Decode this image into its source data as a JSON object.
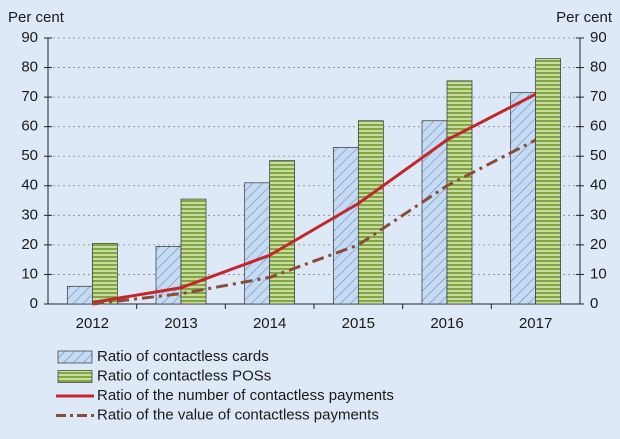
{
  "chart_data": {
    "type": "bar",
    "y_label": "Per cent",
    "y2_label": "Per cent",
    "categories": [
      "2012",
      "2013",
      "2014",
      "2015",
      "2016",
      "2017"
    ],
    "series": [
      {
        "name": "Ratio of contactless cards",
        "type": "bar",
        "hatch": "diagonal",
        "color": "#c6daf1",
        "values": [
          6,
          19.5,
          41,
          53,
          62,
          71.5
        ]
      },
      {
        "name": "Ratio of contactless POSs",
        "type": "bar",
        "hatch": "horizontal",
        "color": "#a9c76a",
        "values": [
          20.5,
          35.5,
          48.5,
          62,
          75.5,
          83
        ]
      },
      {
        "name": "Ratio of the number of contactless payments",
        "type": "line",
        "style": "solid",
        "color": "#c1272d",
        "values": [
          0.5,
          5.5,
          16.5,
          34,
          55.5,
          71
        ]
      },
      {
        "name": "Ratio of the value of contactless payments",
        "type": "line",
        "style": "dash-dot",
        "color": "#8a4b3a",
        "values": [
          0,
          3.5,
          9,
          20,
          40,
          55.5
        ]
      }
    ],
    "ylim": [
      0,
      90
    ],
    "yticks": [
      0,
      10,
      20,
      30,
      40,
      50,
      60,
      70,
      80,
      90
    ],
    "y2lim": [
      0,
      90
    ],
    "y2ticks": [
      0,
      10,
      20,
      30,
      40,
      50,
      60,
      70,
      80,
      90
    ],
    "grid": true
  }
}
